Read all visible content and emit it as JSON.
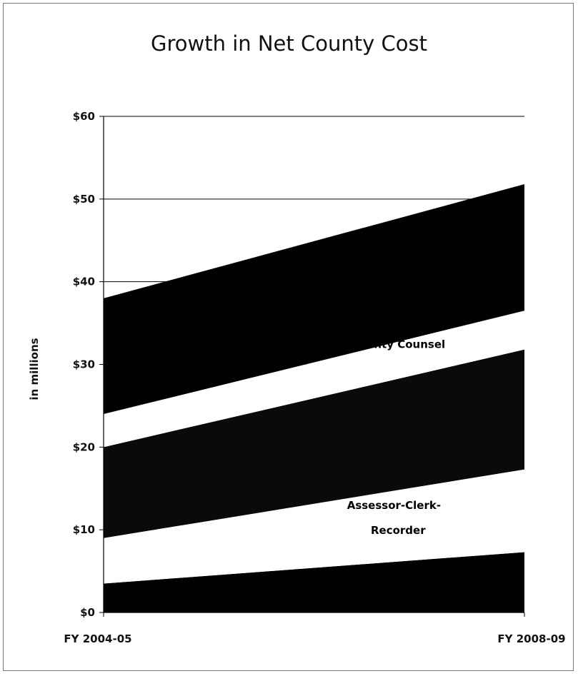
{
  "chart_data": {
    "type": "area",
    "stacked": true,
    "title": "Growth in Net County Cost",
    "xlabel": "",
    "ylabel": "in millions",
    "x": [
      "FY 2004-05",
      "FY 2008-09"
    ],
    "ylim": [
      0,
      60
    ],
    "yticks": [
      "$0",
      "$10",
      "$20",
      "$30",
      "$40",
      "$50",
      "$60"
    ],
    "grid": true,
    "series": [
      {
        "name": "",
        "values": [
          3.5,
          7.3
        ],
        "color": "#000000"
      },
      {
        "name": "Assessor-Clerk-Recorder",
        "values": [
          5.5,
          10.0
        ],
        "color": "#ffffff"
      },
      {
        "name": "",
        "values": [
          11.0,
          14.5
        ],
        "color": "#0a0a0a"
      },
      {
        "name": "County Counsel",
        "values": [
          4.0,
          4.7
        ],
        "color": "#ffffff"
      },
      {
        "name": "",
        "values": [
          14.0,
          15.3
        ],
        "color": "#000000"
      }
    ],
    "annotations": [
      {
        "text": "County Counsel",
        "x": "FY 2008-09",
        "y": 32,
        "color": "#000000"
      },
      {
        "text": "Assessor-Clerk-",
        "x": "FY 2008-09",
        "y": 12.5,
        "color": "#000000"
      },
      {
        "text": "Recorder",
        "x": "FY 2008-09",
        "y": 9.5,
        "color": "#000000"
      }
    ]
  }
}
